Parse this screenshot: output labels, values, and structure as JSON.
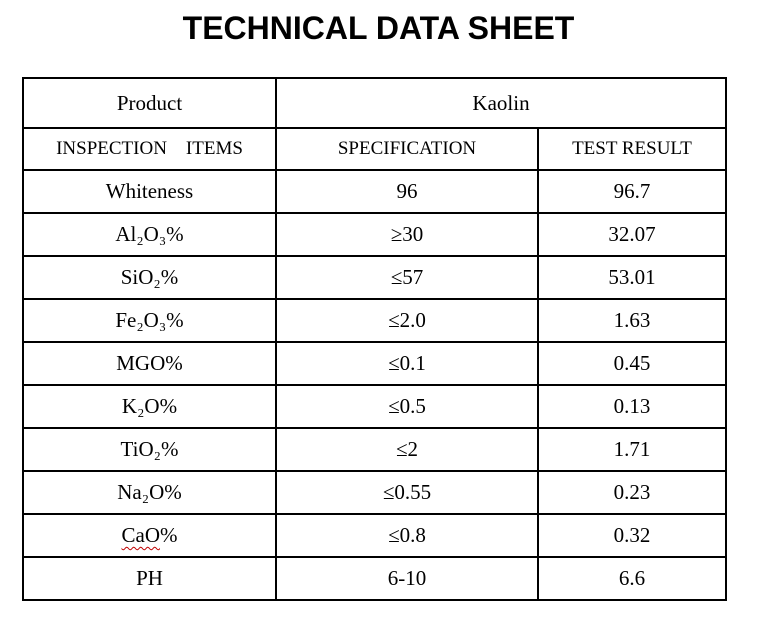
{
  "page": {
    "title": "TECHNICAL DATA SHEET",
    "background": "#ffffff"
  },
  "colors": {
    "border": "#000000",
    "text": "#000000",
    "squiggle_underline": "#c00000"
  },
  "table": {
    "product_row": {
      "label": "Product",
      "value": "Kaolin"
    },
    "headers": {
      "items": "INSPECTION    ITEMS",
      "specification": "SPECIFICATION",
      "test_result": "TEST RESULT"
    },
    "rows": [
      {
        "item": "Whiteness",
        "spec": "96",
        "result": "96.7"
      },
      {
        "item": "Al₂O₃%",
        "spec": "≥30",
        "result": "32.07"
      },
      {
        "item": "SiO₂%",
        "spec": "≤57",
        "result": "53.01"
      },
      {
        "item": "Fe₂O₃%",
        "spec": "≤2.0",
        "result": "1.63"
      },
      {
        "item": "MGO%",
        "spec": "≤0.1",
        "result": "0.45"
      },
      {
        "item": "K₂O%",
        "spec": "≤0.5",
        "result": "0.13"
      },
      {
        "item": "TiO₂%",
        "spec": "≤2",
        "result": "1.71"
      },
      {
        "item": "Na₂O%",
        "spec": "≤0.55",
        "result": "0.23"
      },
      {
        "item": "CaO%",
        "spec": "≤0.8",
        "result": "0.32",
        "misspelled_part": "CaO"
      },
      {
        "item": "PH",
        "spec": "6-10",
        "result": "6.6"
      }
    ]
  }
}
